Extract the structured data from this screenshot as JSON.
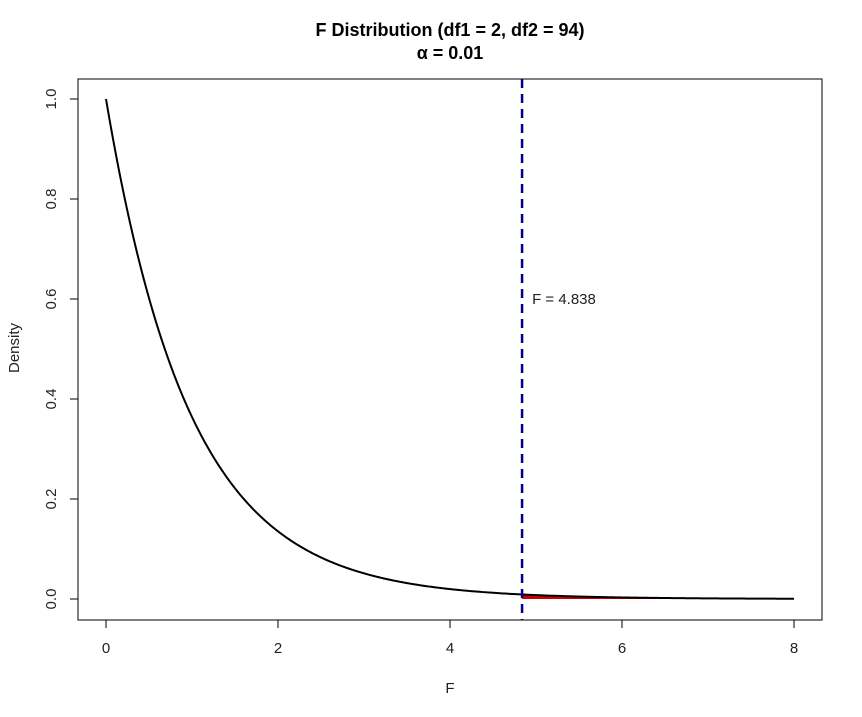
{
  "chart_data": {
    "type": "line",
    "title": "F Distribution (df1 = 2, df2 = 94)",
    "subtitle": "α = 0.01",
    "xlabel": "F",
    "ylabel": "Density",
    "xlim": [
      0,
      8
    ],
    "ylim": [
      0,
      1
    ],
    "grid": false,
    "x_ticks": [
      0,
      2,
      4,
      6,
      8
    ],
    "x_tick_labels": [
      "0",
      "2",
      "4",
      "6",
      "8"
    ],
    "y_ticks": [
      0,
      0.2,
      0.4,
      0.6,
      0.8,
      1
    ],
    "y_tick_labels": [
      "0.0",
      "0.2",
      "0.4",
      "0.6",
      "0.8",
      "1.0"
    ],
    "df1": 2,
    "df2": 94,
    "alpha": 0.01,
    "critical_value": 4.838,
    "critical_label": "F = 4.838",
    "curve_color": "#000000",
    "critical_line_color": "#00008b",
    "rejection_fill_color": "#cc0000"
  }
}
